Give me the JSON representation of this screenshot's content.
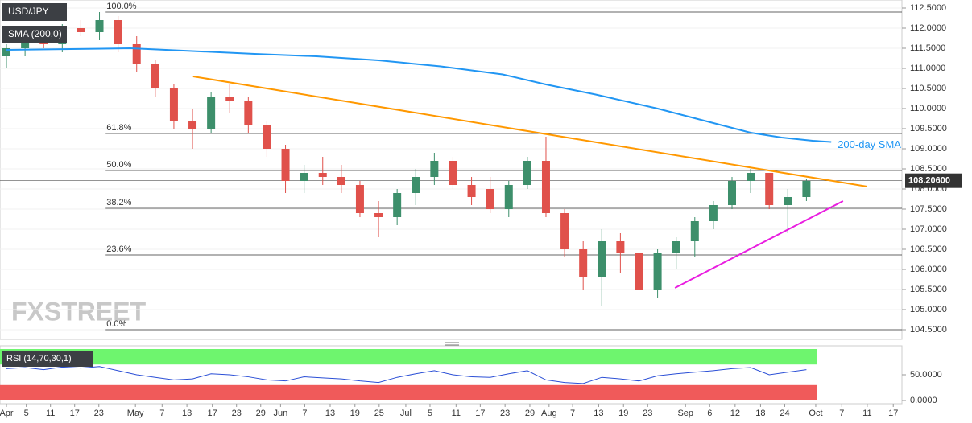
{
  "chart_data": [
    {
      "type": "candlestick",
      "legend": [
        "USD/JPY",
        "SMA (200,0)"
      ],
      "watermark": "FXSTREET",
      "xlim": [
        -1.04,
        144.4
      ],
      "ylim": [
        104.26,
        112.7
      ],
      "xticks": [
        {
          "value": 0,
          "label": "Apr"
        },
        {
          "value": 3.2,
          "label": "5"
        },
        {
          "value": 7.1,
          "label": "11"
        },
        {
          "value": 11,
          "label": "17"
        },
        {
          "value": 14.9,
          "label": "23"
        },
        {
          "value": 20.8,
          "label": "May"
        },
        {
          "value": 25.1,
          "label": "7"
        },
        {
          "value": 29.1,
          "label": "13"
        },
        {
          "value": 33.2,
          "label": "17"
        },
        {
          "value": 37.1,
          "label": "23"
        },
        {
          "value": 41,
          "label": "29"
        },
        {
          "value": 44.2,
          "label": "Jun"
        },
        {
          "value": 48.1,
          "label": "7"
        },
        {
          "value": 52.2,
          "label": "13"
        },
        {
          "value": 56.2,
          "label": "19"
        },
        {
          "value": 60.1,
          "label": "25"
        },
        {
          "value": 64.4,
          "label": "Jul"
        },
        {
          "value": 68.3,
          "label": "5"
        },
        {
          "value": 72.5,
          "label": "11"
        },
        {
          "value": 76.4,
          "label": "17"
        },
        {
          "value": 80.4,
          "label": "23"
        },
        {
          "value": 84.4,
          "label": "29"
        },
        {
          "value": 87.5,
          "label": "Aug"
        },
        {
          "value": 91.3,
          "label": "7"
        },
        {
          "value": 95.5,
          "label": "13"
        },
        {
          "value": 99.5,
          "label": "19"
        },
        {
          "value": 103.4,
          "label": "23"
        },
        {
          "value": 109.5,
          "label": "Sep"
        },
        {
          "value": 113.4,
          "label": "6"
        },
        {
          "value": 117.5,
          "label": "12"
        },
        {
          "value": 121.6,
          "label": "18"
        },
        {
          "value": 125.5,
          "label": "24"
        },
        {
          "value": 130.5,
          "label": "Oct"
        },
        {
          "value": 134.7,
          "label": "7"
        },
        {
          "value": 138.8,
          "label": "11"
        },
        {
          "value": 143,
          "label": "17"
        }
      ],
      "yticks": [
        {
          "value": 104.5,
          "label": "104.5000"
        },
        {
          "value": 105,
          "label": "105.0000"
        },
        {
          "value": 105.5,
          "label": "105.5000"
        },
        {
          "value": 106,
          "label": "106.0000"
        },
        {
          "value": 106.5,
          "label": "106.5000"
        },
        {
          "value": 107,
          "label": "107.0000"
        },
        {
          "value": 107.5,
          "label": "107.5000"
        },
        {
          "value": 108,
          "label": "108.0000"
        },
        {
          "value": 108.5,
          "label": "108.5000"
        },
        {
          "value": 109,
          "label": "109.0000"
        },
        {
          "value": 109.5,
          "label": "109.5000"
        },
        {
          "value": 110,
          "label": "110.0000"
        },
        {
          "value": 110.5,
          "label": "110.5000"
        },
        {
          "value": 111,
          "label": "111.0000"
        },
        {
          "value": 111.5,
          "label": "111.5000"
        },
        {
          "value": 112,
          "label": "112.0000"
        },
        {
          "value": 112.5,
          "label": "112.5000"
        }
      ],
      "grid": true,
      "up_color": "#3d8f6b",
      "down_color": "#e0514b",
      "candles": {
        "x": [
          0,
          3,
          6,
          9,
          12,
          15,
          18,
          21,
          24,
          27,
          30,
          33,
          36,
          39,
          42,
          45,
          48,
          51,
          54,
          57,
          60,
          63,
          66,
          69,
          72,
          75,
          78,
          81,
          84,
          87,
          90,
          93,
          96,
          99,
          102,
          105,
          108,
          111,
          114,
          117,
          120,
          123,
          126,
          129
        ],
        "open": [
          111.3,
          111.5,
          111.8,
          111.6,
          112,
          111.9,
          112.2,
          111.6,
          111.1,
          110.5,
          109.7,
          109.5,
          110.3,
          110.2,
          109.6,
          109,
          108.2,
          108.4,
          108.3,
          108.1,
          107.4,
          107.3,
          107.9,
          108.3,
          108.7,
          108.1,
          108,
          107.5,
          108.1,
          108.7,
          107.4,
          106.5,
          105.8,
          106.7,
          106.4,
          105.5,
          106.4,
          106.7,
          107.2,
          107.6,
          108.2,
          108.4,
          107.6,
          107.8
        ],
        "high": [
          111.6,
          111.9,
          112,
          112.1,
          112.2,
          112.4,
          112.3,
          111.8,
          111.2,
          110.6,
          110,
          110.4,
          110.6,
          110.3,
          109.7,
          109.1,
          108.6,
          108.8,
          108.6,
          108.2,
          107.7,
          108,
          108.5,
          108.9,
          108.8,
          108.3,
          108.3,
          108.2,
          108.8,
          109.3,
          107.5,
          106.7,
          107,
          106.9,
          106.6,
          106.5,
          106.8,
          107.3,
          107.7,
          108.3,
          108.5,
          108.4,
          108,
          108.25
        ],
        "low": [
          111,
          111.3,
          111.5,
          111.4,
          111.8,
          111.7,
          111.4,
          110.9,
          110.3,
          109.5,
          109,
          109.4,
          109.9,
          109.4,
          108.8,
          107.9,
          107.9,
          108.1,
          107.9,
          107.3,
          106.8,
          107.1,
          107.6,
          108.1,
          108,
          107.6,
          107.4,
          107.3,
          108,
          107.3,
          106.3,
          105.5,
          105.1,
          105.9,
          104.45,
          105.3,
          106,
          106.3,
          107,
          107.5,
          107.9,
          107.5,
          106.9,
          107.7
        ],
        "close": [
          111.5,
          111.8,
          111.6,
          112,
          111.9,
          112.2,
          111.6,
          111.1,
          110.5,
          109.7,
          109.5,
          110.3,
          110.2,
          109.6,
          109,
          108.2,
          108.4,
          108.3,
          108.1,
          107.4,
          107.3,
          107.9,
          108.3,
          108.7,
          108.1,
          107.8,
          107.5,
          108.1,
          108.7,
          107.4,
          106.5,
          105.8,
          106.7,
          106.4,
          105.5,
          106.4,
          106.7,
          107.2,
          107.6,
          108.2,
          108.4,
          107.6,
          107.8,
          108.2
        ]
      },
      "sma": {
        "name": "200-day SMA",
        "color": "#2196f3",
        "x": [
          0,
          20,
          40,
          50,
          60,
          70,
          80,
          87,
          95,
          105,
          115,
          120,
          125,
          130,
          133
        ],
        "values": [
          111.46,
          111.5,
          111.36,
          111.3,
          111.2,
          111.05,
          110.85,
          110.6,
          110.35,
          110,
          109.6,
          109.4,
          109.28,
          109.2,
          109.17
        ]
      },
      "fib_levels": [
        {
          "value": 112.4,
          "label": "100.0%"
        },
        {
          "value": 109.38,
          "label": "61.8%"
        },
        {
          "value": 108.46,
          "label": "50.0%"
        },
        {
          "value": 107.52,
          "label": "38.2%"
        },
        {
          "value": 106.36,
          "label": "23.6%"
        },
        {
          "value": 104.5,
          "label": "0.0%"
        }
      ],
      "fib_start": 16,
      "trend_lines": [
        {
          "color": "#ff9800",
          "x": [
            30.1,
            138.8
          ],
          "values": [
            110.8,
            108.06
          ]
        },
        {
          "color": "#e91ee0",
          "x": [
            107.8,
            134.9
          ],
          "values": [
            105.54,
            107.7
          ]
        }
      ],
      "last_price": {
        "value": 108.206,
        "label": "108.20600"
      }
    },
    {
      "type": "line",
      "title": "RSI (14,70,30,1)",
      "color": "#2b4fd6",
      "xlim": [
        -1.04,
        144.4
      ],
      "ylim": [
        0,
        100
      ],
      "yticks": [
        {
          "value": 0,
          "label": "0.0000"
        },
        {
          "value": 50,
          "label": "50.0000"
        }
      ],
      "overbought": 70,
      "oversold": 30,
      "x": [
        0,
        3,
        6,
        9,
        12,
        15,
        18,
        21,
        24,
        27,
        30,
        33,
        36,
        39,
        42,
        45,
        48,
        51,
        54,
        57,
        60,
        63,
        66,
        69,
        72,
        75,
        78,
        81,
        84,
        87,
        90,
        93,
        96,
        99,
        102,
        105,
        108,
        111,
        114,
        117,
        120,
        123,
        126,
        129
      ],
      "values": [
        62,
        64,
        60,
        65,
        63,
        66,
        58,
        50,
        45,
        40,
        42,
        52,
        50,
        46,
        40,
        38,
        46,
        44,
        42,
        38,
        35,
        45,
        52,
        58,
        50,
        46,
        45,
        52,
        58,
        40,
        35,
        33,
        45,
        42,
        38,
        48,
        52,
        55,
        58,
        62,
        64,
        50,
        55,
        60
      ]
    }
  ]
}
